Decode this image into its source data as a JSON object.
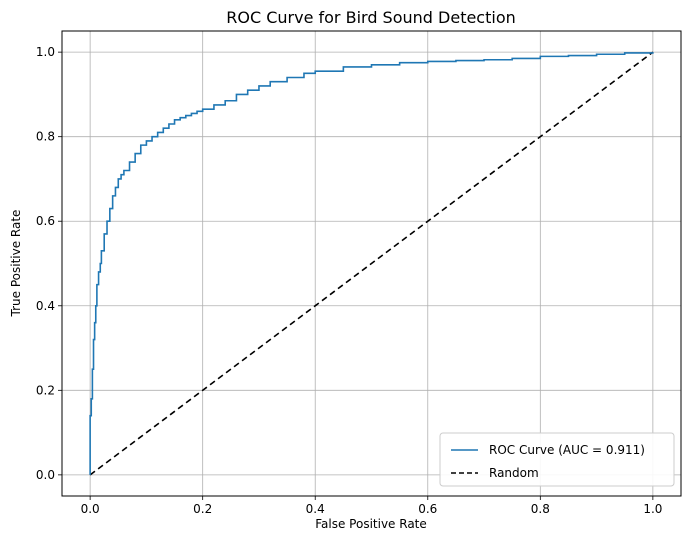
{
  "chart_data": {
    "type": "line",
    "title": "ROC Curve for Bird Sound Detection",
    "xlabel": "False Positive Rate",
    "ylabel": "True Positive Rate",
    "xlim": [
      -0.05,
      1.05
    ],
    "ylim": [
      -0.05,
      1.05
    ],
    "xticks": [
      0.0,
      0.2,
      0.4,
      0.6,
      0.8,
      1.0
    ],
    "yticks": [
      0.0,
      0.2,
      0.4,
      0.6,
      0.8,
      1.0
    ],
    "xtick_labels": [
      "0.0",
      "0.2",
      "0.4",
      "0.6",
      "0.8",
      "1.0"
    ],
    "ytick_labels": [
      "0.0",
      "0.2",
      "0.4",
      "0.6",
      "0.8",
      "1.0"
    ],
    "grid": true,
    "legend_position": "lower-right",
    "series": [
      {
        "name": "ROC Curve (AUC = 0.911)",
        "color": "#1f77b4",
        "style": "step",
        "x": [
          0.0,
          0.0,
          0.002,
          0.004,
          0.006,
          0.008,
          0.01,
          0.012,
          0.015,
          0.018,
          0.02,
          0.025,
          0.03,
          0.035,
          0.04,
          0.045,
          0.05,
          0.055,
          0.06,
          0.07,
          0.08,
          0.09,
          0.1,
          0.11,
          0.12,
          0.13,
          0.14,
          0.15,
          0.16,
          0.17,
          0.18,
          0.19,
          0.2,
          0.22,
          0.24,
          0.26,
          0.28,
          0.3,
          0.32,
          0.35,
          0.38,
          0.4,
          0.45,
          0.5,
          0.55,
          0.6,
          0.65,
          0.7,
          0.75,
          0.8,
          0.85,
          0.9,
          0.95,
          1.0
        ],
        "y": [
          0.0,
          0.14,
          0.18,
          0.25,
          0.32,
          0.36,
          0.4,
          0.45,
          0.48,
          0.5,
          0.53,
          0.57,
          0.6,
          0.63,
          0.66,
          0.68,
          0.7,
          0.71,
          0.72,
          0.74,
          0.76,
          0.78,
          0.79,
          0.8,
          0.81,
          0.82,
          0.83,
          0.84,
          0.845,
          0.85,
          0.855,
          0.86,
          0.865,
          0.875,
          0.885,
          0.9,
          0.91,
          0.92,
          0.93,
          0.94,
          0.95,
          0.955,
          0.965,
          0.97,
          0.975,
          0.978,
          0.98,
          0.982,
          0.985,
          0.99,
          0.992,
          0.995,
          0.998,
          1.0
        ]
      },
      {
        "name": "Random",
        "color": "#000000",
        "style": "dashed",
        "x": [
          0.0,
          1.0
        ],
        "y": [
          0.0,
          1.0
        ]
      }
    ]
  }
}
